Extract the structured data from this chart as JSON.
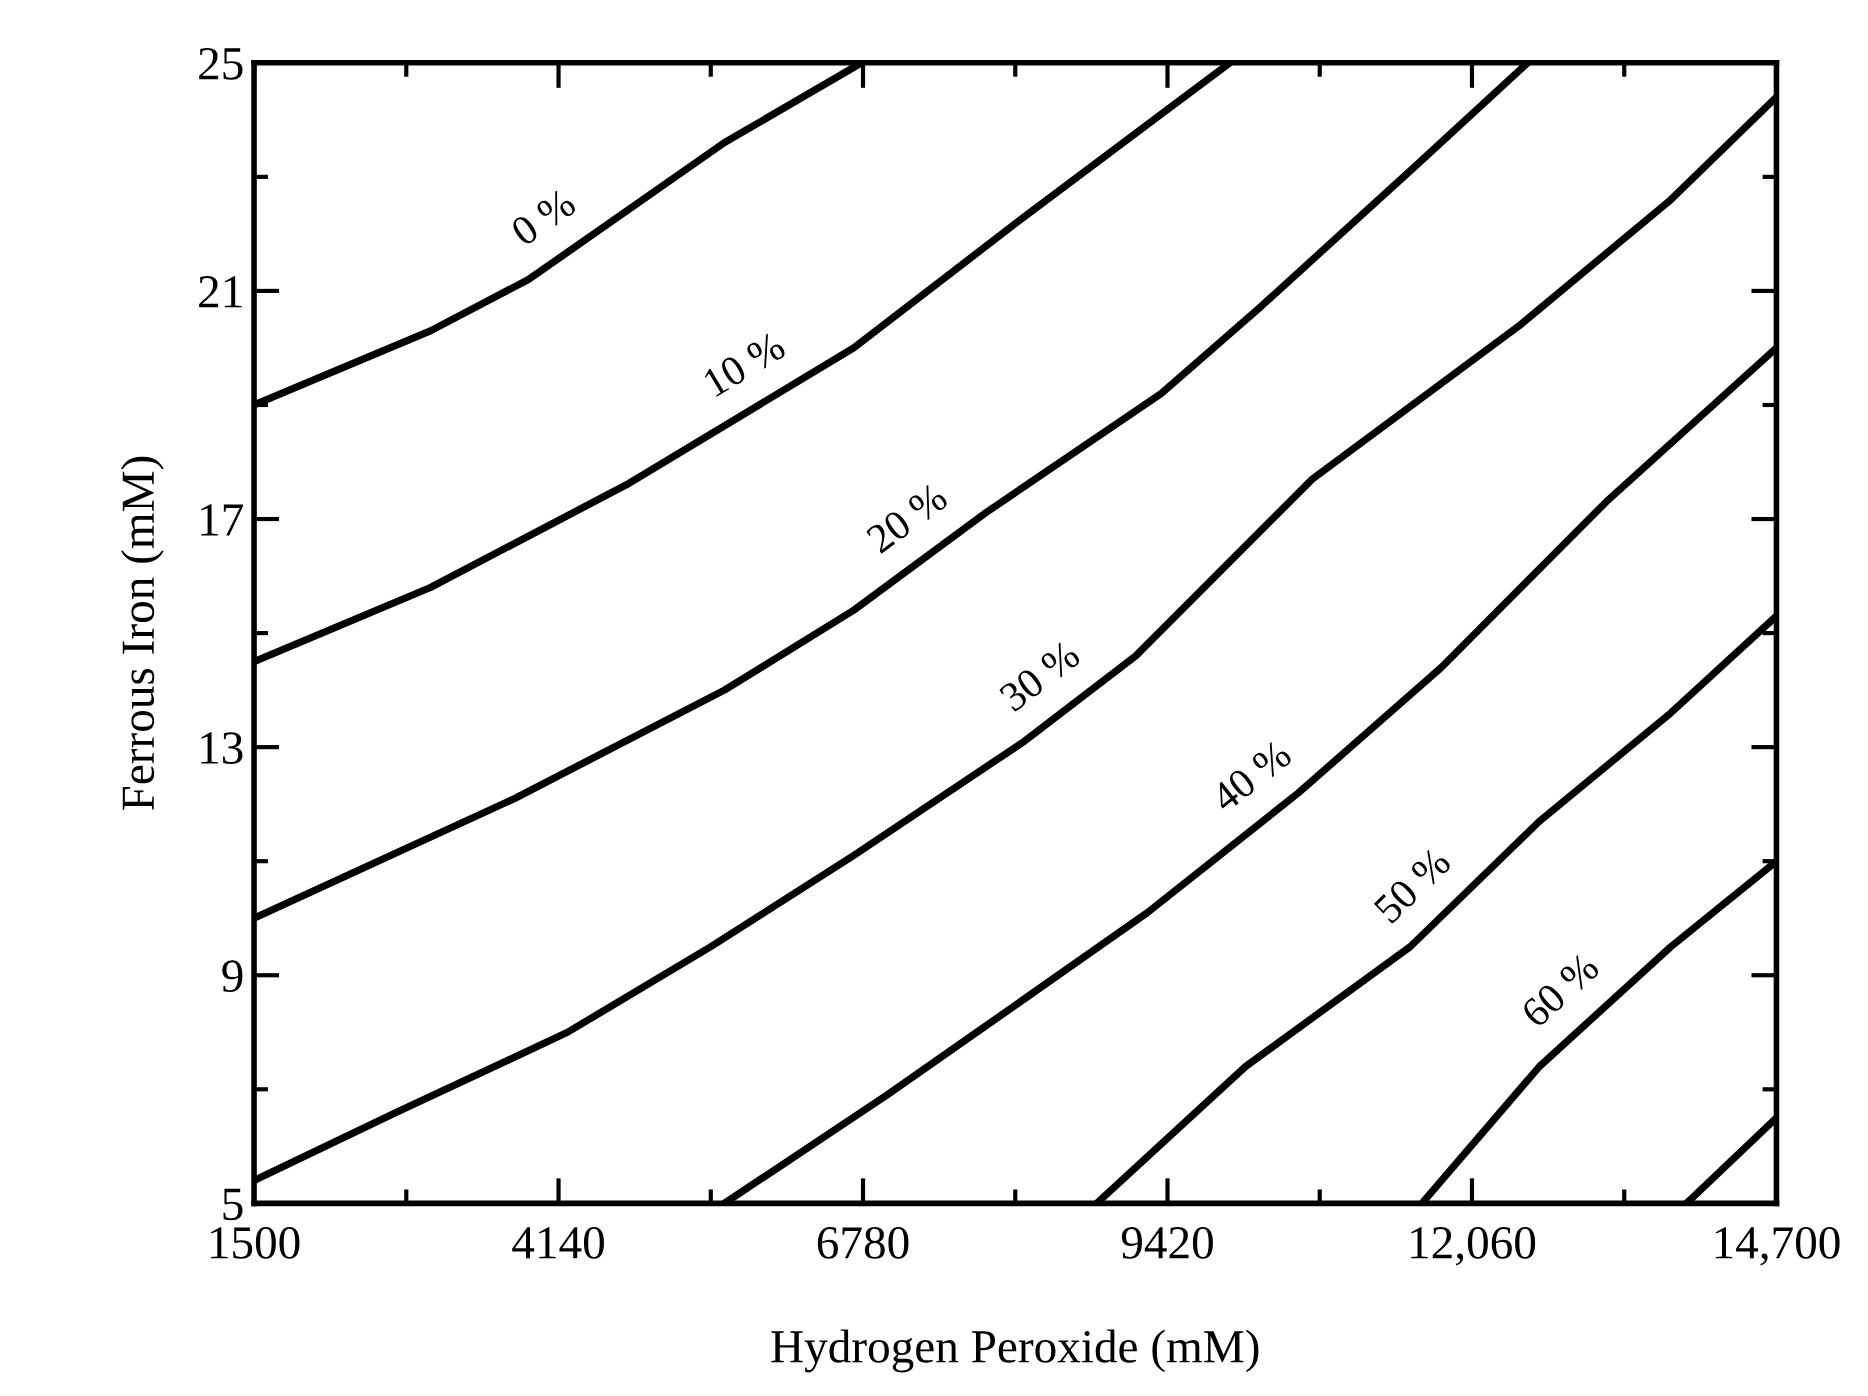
{
  "chart_data": {
    "type": "line",
    "xlabel": "Hydrogen Peroxide (mM)",
    "ylabel": "Ferrous Iron (mM)",
    "xlim": [
      1500,
      14700
    ],
    "ylim": [
      5,
      25
    ],
    "xticks": [
      1500,
      {
        "value": 2820,
        "label": null
      },
      4140,
      {
        "value": 5460,
        "label": null
      },
      6780,
      {
        "value": 8100,
        "label": null
      },
      9420,
      {
        "value": 10740,
        "label": null
      },
      {
        "value": 12060,
        "label": "12,060"
      },
      {
        "value": 13380,
        "label": null
      },
      {
        "value": 14700,
        "label": "14,700"
      }
    ],
    "yticks": [
      5,
      {
        "value": 7,
        "label": null
      },
      9,
      {
        "value": 11,
        "label": null
      },
      13,
      {
        "value": 15,
        "label": null
      },
      17,
      {
        "value": 19,
        "label": null
      },
      21,
      {
        "value": 23,
        "label": null
      },
      25
    ],
    "grid": false,
    "legend": false,
    "marker": "none",
    "line_style": "solid",
    "series": [
      {
        "name": "0 %",
        "color": "#000000",
        "x": [
          1500,
          3029,
          3879,
          5578,
          6767
        ],
        "values": [
          19.0,
          20.3,
          21.2,
          23.6,
          25.0
        ]
      },
      {
        "name": "10 %",
        "color": "#000000",
        "x": [
          1500,
          3029,
          4728,
          6699,
          8177,
          9366,
          9961
        ],
        "values": [
          14.5,
          15.8,
          17.6,
          20.0,
          22.3,
          24.1,
          25.0
        ]
      },
      {
        "name": "20 %",
        "color": "#000000",
        "x": [
          1500,
          3760,
          5578,
          6699,
          7837,
          9366,
          10216,
          11575,
          12543
        ],
        "values": [
          10.0,
          12.1,
          14.0,
          15.4,
          17.1,
          19.2,
          20.7,
          23.2,
          25.0
        ]
      },
      {
        "name": "30 %",
        "color": "#000000",
        "x": [
          1500,
          2740,
          4218,
          5459,
          6699,
          8177,
          9145,
          10675,
          12476,
          13784,
          14700
        ],
        "values": [
          5.4,
          6.6,
          8.0,
          9.5,
          11.1,
          13.1,
          14.6,
          17.7,
          20.4,
          22.6,
          24.4
        ]
      },
      {
        "name": "40 %",
        "color": "#000000",
        "x": [
          5578,
          6988,
          7837,
          9247,
          10556,
          11796,
          13223,
          14700
        ],
        "values": [
          5.0,
          6.9,
          8.1,
          10.1,
          12.2,
          14.4,
          17.3,
          20.0
        ]
      },
      {
        "name": "50 %",
        "color": "#000000",
        "x": [
          8806,
          10097,
          11524,
          12645,
          13784,
          14700
        ],
        "values": [
          5.0,
          7.4,
          9.5,
          11.7,
          13.6,
          15.3
        ]
      },
      {
        "name": "60 %",
        "color": "#000000",
        "x": [
          11626,
          12645,
          13784,
          14700
        ],
        "values": [
          5.0,
          7.4,
          9.5,
          11.0
        ]
      },
      {
        "color": "#000000",
        "x": [
          13920,
          14700
        ],
        "values": [
          5.0,
          6.5
        ]
      }
    ]
  }
}
